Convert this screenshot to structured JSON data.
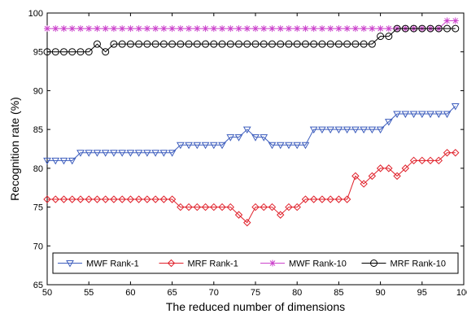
{
  "chart_data": {
    "type": "line",
    "title": "",
    "xlabel": "The reduced number of dimensions",
    "ylabel": "Recognition rate (%)",
    "xlim": [
      50,
      100
    ],
    "ylim": [
      65,
      100
    ],
    "xticks": [
      50,
      55,
      60,
      65,
      70,
      75,
      80,
      85,
      90,
      95,
      100
    ],
    "yticks": [
      65,
      70,
      75,
      80,
      85,
      90,
      95,
      100
    ],
    "grid": false,
    "legend_position": "bottom",
    "x": [
      50,
      51,
      52,
      53,
      54,
      55,
      56,
      57,
      58,
      59,
      60,
      61,
      62,
      63,
      64,
      65,
      66,
      67,
      68,
      69,
      70,
      71,
      72,
      73,
      74,
      75,
      76,
      77,
      78,
      79,
      80,
      81,
      82,
      83,
      84,
      85,
      86,
      87,
      88,
      89,
      90,
      91,
      92,
      93,
      94,
      95,
      96,
      97,
      98,
      99
    ],
    "series": [
      {
        "name": "MWF Rank-1",
        "color": "#3d5dbd",
        "marker": "triangle-down",
        "values": [
          81,
          81,
          81,
          81,
          82,
          82,
          82,
          82,
          82,
          82,
          82,
          82,
          82,
          82,
          82,
          82,
          83,
          83,
          83,
          83,
          83,
          83,
          84,
          84,
          85,
          84,
          84,
          83,
          83,
          83,
          83,
          83,
          85,
          85,
          85,
          85,
          85,
          85,
          85,
          85,
          85,
          86,
          87,
          87,
          87,
          87,
          87,
          87,
          87,
          88
        ]
      },
      {
        "name": "MRF Rank-1",
        "color": "#e0202a",
        "marker": "diamond",
        "values": [
          76,
          76,
          76,
          76,
          76,
          76,
          76,
          76,
          76,
          76,
          76,
          76,
          76,
          76,
          76,
          76,
          75,
          75,
          75,
          75,
          75,
          75,
          75,
          74,
          73,
          75,
          75,
          75,
          74,
          75,
          75,
          76,
          76,
          76,
          76,
          76,
          76,
          79,
          78,
          79,
          80,
          80,
          79,
          80,
          81,
          81,
          81,
          81,
          82,
          82
        ]
      },
      {
        "name": "MWF Rank-10",
        "color": "#cc44cc",
        "marker": "star",
        "values": [
          98,
          98,
          98,
          98,
          98,
          98,
          98,
          98,
          98,
          98,
          98,
          98,
          98,
          98,
          98,
          98,
          98,
          98,
          98,
          98,
          98,
          98,
          98,
          98,
          98,
          98,
          98,
          98,
          98,
          98,
          98,
          98,
          98,
          98,
          98,
          98,
          98,
          98,
          98,
          98,
          98,
          98,
          98,
          98,
          98,
          98,
          98,
          98,
          99,
          99
        ]
      },
      {
        "name": "MRF Rank-10",
        "color": "#000000",
        "marker": "circle",
        "values": [
          95,
          95,
          95,
          95,
          95,
          95,
          96,
          95,
          96,
          96,
          96,
          96,
          96,
          96,
          96,
          96,
          96,
          96,
          96,
          96,
          96,
          96,
          96,
          96,
          96,
          96,
          96,
          96,
          96,
          96,
          96,
          96,
          96,
          96,
          96,
          96,
          96,
          96,
          96,
          96,
          97,
          97,
          98,
          98,
          98,
          98,
          98,
          98,
          98,
          98
        ]
      }
    ]
  }
}
